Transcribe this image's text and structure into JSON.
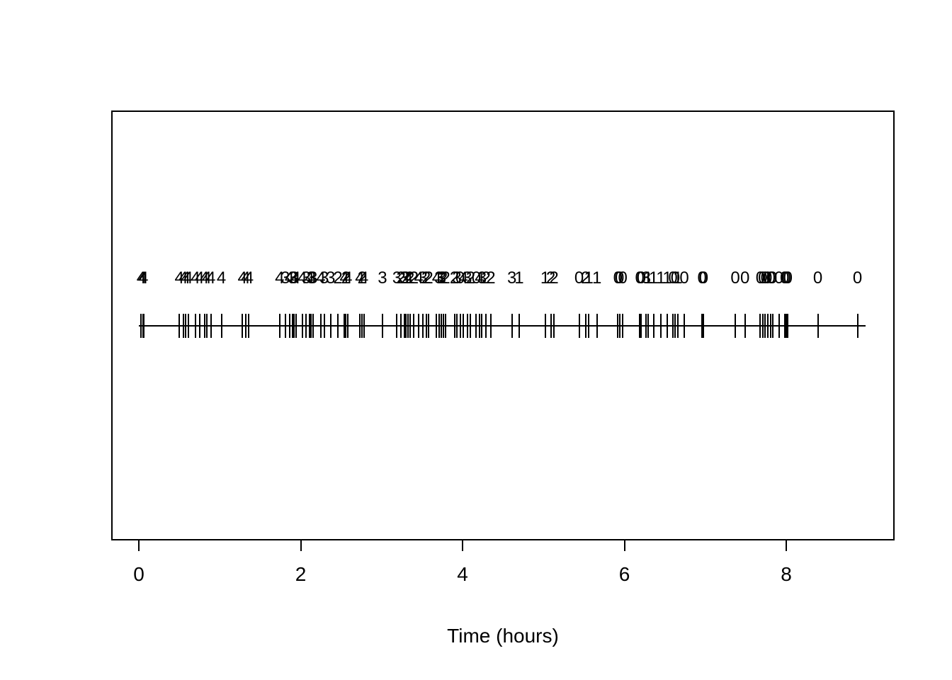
{
  "chart_data": {
    "type": "scatter",
    "subtype": "event-timeline-rug",
    "title": "",
    "xlabel": "Time (hours)",
    "ylabel": "",
    "xlim": [
      -0.35,
      9.34
    ],
    "x_ticks": [
      0,
      2,
      4,
      6,
      8
    ],
    "grid": "off",
    "legend": "none",
    "timeline": {
      "start": 0,
      "end": 8.98
    },
    "events_t_label": [
      [
        0.03,
        "4"
      ],
      [
        0.05,
        "4"
      ],
      [
        0.06,
        "4"
      ],
      [
        0.5,
        "4"
      ],
      [
        0.55,
        "4"
      ],
      [
        0.58,
        "4"
      ],
      [
        0.61,
        "4"
      ],
      [
        0.7,
        "4"
      ],
      [
        0.75,
        "4"
      ],
      [
        0.81,
        "4"
      ],
      [
        0.84,
        "4"
      ],
      [
        0.89,
        "4"
      ],
      [
        1.02,
        "4"
      ],
      [
        1.28,
        "4"
      ],
      [
        1.32,
        "4"
      ],
      [
        1.36,
        "4"
      ],
      [
        1.74,
        "4"
      ],
      [
        1.81,
        "3"
      ],
      [
        1.86,
        "4"
      ],
      [
        1.9,
        "3"
      ],
      [
        1.92,
        "3"
      ],
      [
        1.94,
        "4"
      ],
      [
        2.02,
        "4"
      ],
      [
        2.07,
        "3"
      ],
      [
        2.11,
        "4"
      ],
      [
        2.13,
        "3"
      ],
      [
        2.15,
        "3"
      ],
      [
        2.25,
        "4"
      ],
      [
        2.29,
        "3"
      ],
      [
        2.37,
        "3"
      ],
      [
        2.46,
        "2"
      ],
      [
        2.54,
        "4"
      ],
      [
        2.56,
        "2"
      ],
      [
        2.58,
        "4"
      ],
      [
        2.73,
        "4"
      ],
      [
        2.76,
        "2"
      ],
      [
        2.78,
        "4"
      ],
      [
        3.01,
        "3"
      ],
      [
        3.19,
        "3"
      ],
      [
        3.24,
        "2"
      ],
      [
        3.28,
        "3"
      ],
      [
        3.3,
        "2"
      ],
      [
        3.33,
        "4"
      ],
      [
        3.35,
        "2"
      ],
      [
        3.4,
        "2"
      ],
      [
        3.46,
        "4"
      ],
      [
        3.51,
        "3"
      ],
      [
        3.55,
        "2"
      ],
      [
        3.58,
        "2"
      ],
      [
        3.68,
        "4"
      ],
      [
        3.71,
        "3"
      ],
      [
        3.74,
        "3"
      ],
      [
        3.76,
        "2"
      ],
      [
        3.79,
        "2"
      ],
      [
        3.9,
        "2"
      ],
      [
        3.93,
        "3"
      ],
      [
        3.97,
        "0"
      ],
      [
        4.01,
        "4"
      ],
      [
        4.06,
        "3"
      ],
      [
        4.1,
        "2"
      ],
      [
        4.17,
        "0"
      ],
      [
        4.21,
        "4"
      ],
      [
        4.24,
        "3"
      ],
      [
        4.29,
        "2"
      ],
      [
        4.35,
        "2"
      ],
      [
        4.61,
        "3"
      ],
      [
        4.7,
        "1"
      ],
      [
        5.02,
        "1"
      ],
      [
        5.09,
        "2"
      ],
      [
        5.13,
        "2"
      ],
      [
        5.44,
        "0"
      ],
      [
        5.52,
        "2"
      ],
      [
        5.56,
        "1"
      ],
      [
        5.66,
        "1"
      ],
      [
        5.92,
        "0"
      ],
      [
        5.94,
        "0"
      ],
      [
        5.98,
        "0"
      ],
      [
        6.19,
        "0"
      ],
      [
        6.21,
        "0"
      ],
      [
        6.27,
        "3"
      ],
      [
        6.29,
        "1"
      ],
      [
        6.36,
        "1"
      ],
      [
        6.45,
        "1"
      ],
      [
        6.53,
        "1"
      ],
      [
        6.6,
        "0"
      ],
      [
        6.63,
        "0"
      ],
      [
        6.66,
        "1"
      ],
      [
        6.74,
        "0"
      ],
      [
        6.96,
        "0"
      ],
      [
        6.98,
        "0"
      ],
      [
        7.37,
        "0"
      ],
      [
        7.49,
        "0"
      ],
      [
        7.68,
        "0"
      ],
      [
        7.71,
        "0"
      ],
      [
        7.74,
        "0"
      ],
      [
        7.77,
        "0"
      ],
      [
        7.81,
        "0"
      ],
      [
        7.83,
        "0"
      ],
      [
        7.91,
        "0"
      ],
      [
        7.98,
        "0"
      ],
      [
        8.0,
        "0"
      ],
      [
        8.02,
        "0"
      ],
      [
        8.39,
        "0"
      ],
      [
        8.88,
        "0"
      ]
    ]
  }
}
